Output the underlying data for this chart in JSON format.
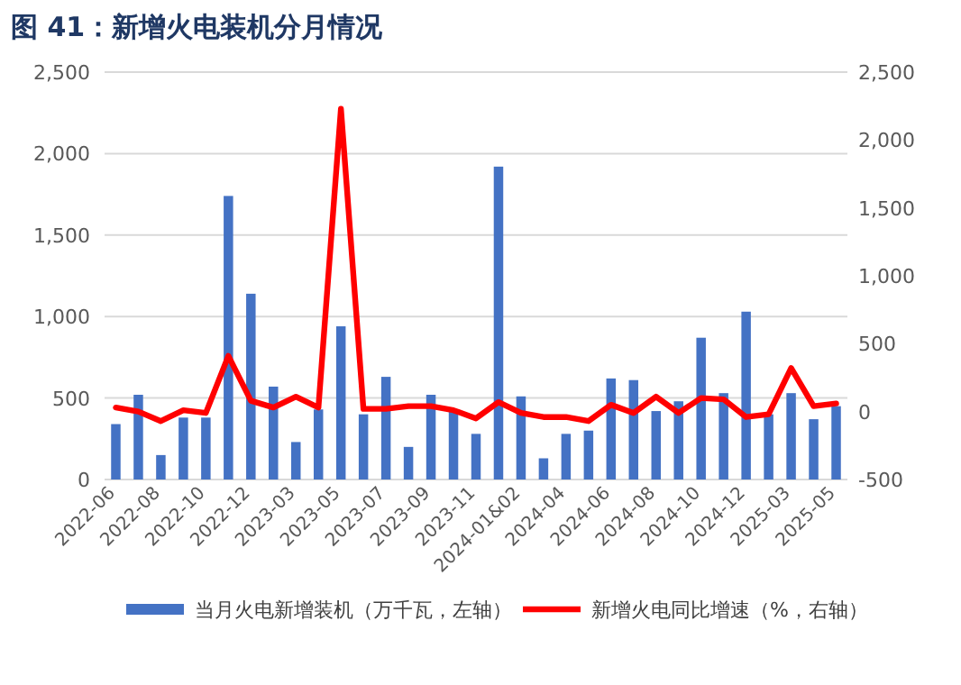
{
  "chart_data": {
    "type": "bar",
    "title": "图 41：新增火电装机分月情况",
    "categories": [
      "2022-06",
      null,
      "2022-08",
      null,
      "2022-10",
      null,
      "2022-12",
      null,
      "2023-03",
      null,
      "2023-05",
      null,
      "2023-07",
      null,
      "2023-09",
      null,
      "2023-11",
      null,
      "2024-01&02",
      null,
      "2024-04",
      null,
      "2024-06",
      null,
      "2024-08",
      null,
      "2024-10",
      null,
      "2024-12",
      null,
      "2025-03",
      null,
      "2025-05"
    ],
    "series": [
      {
        "name": "当月火电新增装机（万千瓦，左轴）",
        "color": "#4472c4",
        "values": [
          340,
          520,
          150,
          380,
          380,
          1740,
          1140,
          570,
          230,
          430,
          940,
          400,
          630,
          200,
          520,
          420,
          280,
          1920,
          510,
          130,
          280,
          300,
          620,
          610,
          420,
          480,
          870,
          530,
          1030,
          400,
          530,
          370,
          450
        ]
      },
      {
        "name": "新增火电同比增速（%，右轴）",
        "type": "line",
        "axis": "y2",
        "color": "#ff0000",
        "values": [
          30,
          0,
          -70,
          10,
          -10,
          410,
          80,
          30,
          110,
          30,
          2230,
          20,
          20,
          40,
          40,
          10,
          -50,
          70,
          -10,
          -40,
          -40,
          -70,
          50,
          -10,
          110,
          -10,
          100,
          90,
          -40,
          -20,
          320,
          40,
          60
        ]
      }
    ],
    "ylim": [
      0,
      2500
    ],
    "yticks": [
      0,
      {
        "value": 500,
        "label": "500"
      },
      {
        "value": 1000,
        "label": "1,000"
      },
      {
        "value": 1500,
        "label": "1,500"
      },
      {
        "value": 2000,
        "label": "2,000"
      },
      {
        "value": 2500,
        "label": "2,500"
      }
    ],
    "y2lim": [
      -500,
      2500
    ],
    "y2ticks": [
      -500,
      0,
      500,
      {
        "value": 1000,
        "label": "1,000"
      },
      {
        "value": 1500,
        "label": "1,500"
      },
      {
        "value": 2000,
        "label": "2,000"
      },
      {
        "value": 2500,
        "label": "2,500"
      }
    ],
    "grid": "y",
    "legend": "bottom",
    "marker": "none",
    "line_style": "solid"
  }
}
